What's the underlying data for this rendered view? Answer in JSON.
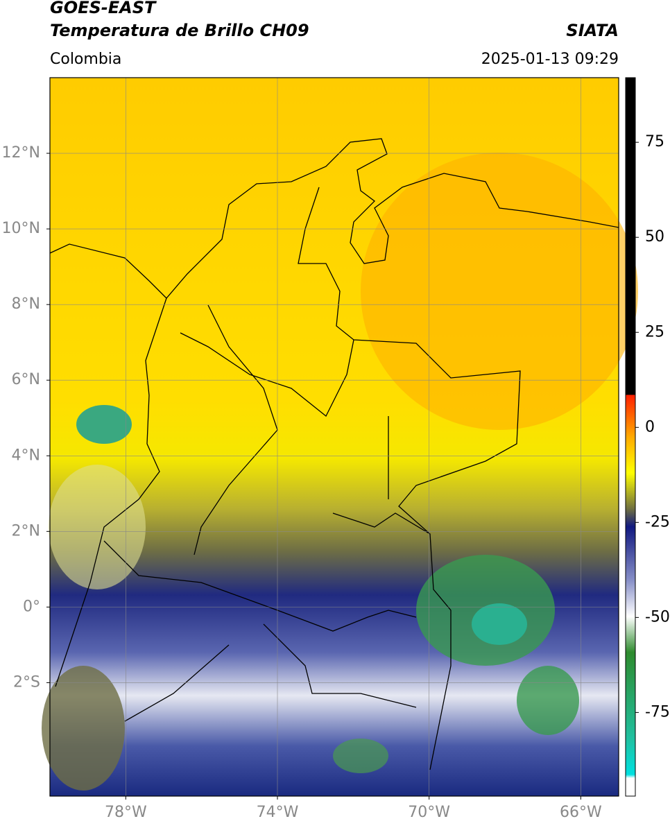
{
  "header": {
    "title": "GOES-EAST",
    "subtitle": "Temperatura de Brillo CH09",
    "source": "SIATA",
    "region": "Colombia",
    "datetime": "2025-01-13 09:29"
  },
  "map": {
    "xlim": [
      -80,
      -65
    ],
    "ylim": [
      -5,
      14
    ],
    "xticks": [
      {
        "value": -78,
        "label": "78°W"
      },
      {
        "value": -74,
        "label": "74°W"
      },
      {
        "value": -70,
        "label": "70°W"
      },
      {
        "value": -66,
        "label": "66°W"
      }
    ],
    "yticks": [
      {
        "value": 12,
        "label": "12°N"
      },
      {
        "value": 10,
        "label": "10°N"
      },
      {
        "value": 8,
        "label": "8°N"
      },
      {
        "value": 6,
        "label": "6°N"
      },
      {
        "value": 4,
        "label": "4°N"
      },
      {
        "value": 2,
        "label": "2°N"
      },
      {
        "value": 0,
        "label": "0°"
      },
      {
        "value": -2,
        "label": "2°S"
      }
    ],
    "grid": true
  },
  "colorbar": {
    "clim": [
      -97,
      92
    ],
    "ticks": [
      75,
      50,
      25,
      0,
      -25,
      -50,
      -75
    ]
  }
}
